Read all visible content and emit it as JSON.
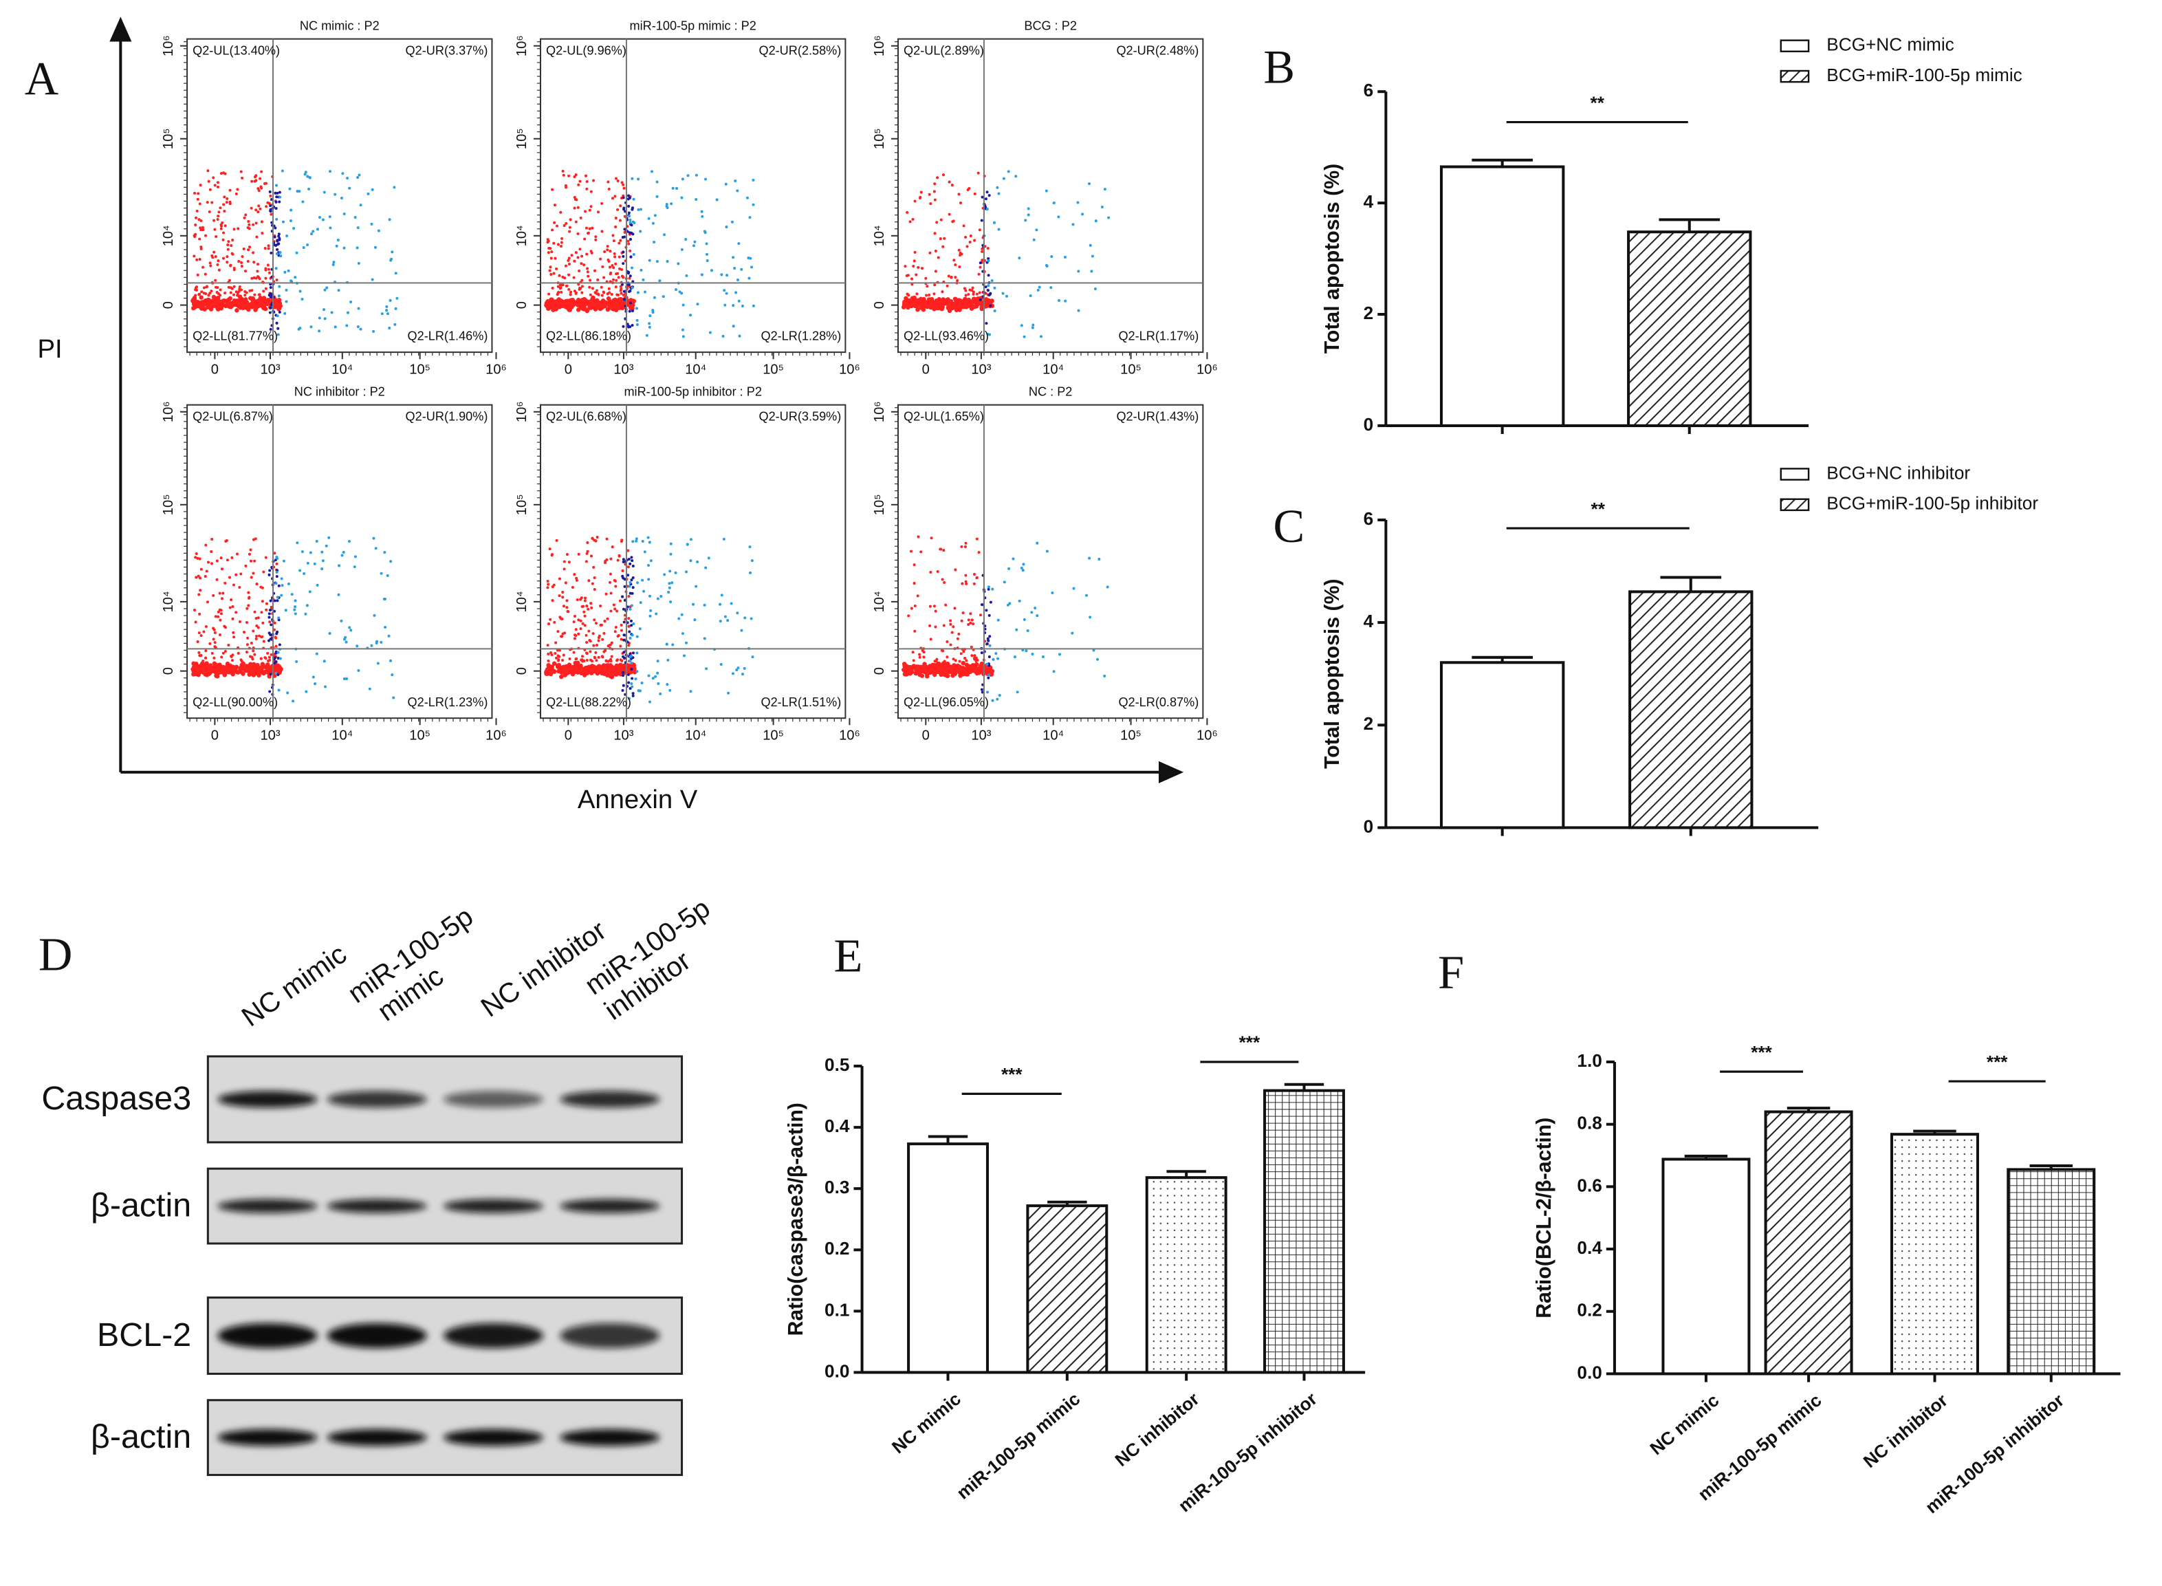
{
  "panel_labels": [
    "A",
    "B",
    "C",
    "D",
    "E",
    "F"
  ],
  "flow": {
    "y_label": "PI",
    "x_label": "Annexin V",
    "x_ticks": [
      "0",
      "10³",
      "10⁴",
      "10⁵",
      "10⁶"
    ],
    "y_ticks": [
      "0",
      "10⁴",
      "10⁵",
      "10⁶"
    ],
    "plots": [
      {
        "title": "NC mimic : P2",
        "UL": "Q2-UL(13.40%)",
        "UR": "Q2-UR(3.37%)",
        "LL": "Q2-LL(81.77%)",
        "LR": "Q2-LR(1.46%)"
      },
      {
        "title": "miR-100-5p mimic : P2",
        "UL": "Q2-UL(9.96%)",
        "UR": "Q2-UR(2.58%)",
        "LL": "Q2-LL(86.18%)",
        "LR": "Q2-LR(1.28%)"
      },
      {
        "title": "BCG : P2",
        "UL": "Q2-UL(2.89%)",
        "UR": "Q2-UR(2.48%)",
        "LL": "Q2-LL(93.46%)",
        "LR": "Q2-LR(1.17%)"
      },
      {
        "title": "NC inhibitor : P2",
        "UL": "Q2-UL(6.87%)",
        "UR": "Q2-UR(1.90%)",
        "LL": "Q2-LL(90.00%)",
        "LR": "Q2-LR(1.23%)"
      },
      {
        "title": "miR-100-5p inhibitor : P2",
        "UL": "Q2-UL(6.68%)",
        "UR": "Q2-UR(3.59%)",
        "LL": "Q2-LL(88.22%)",
        "LR": "Q2-LR(1.51%)"
      },
      {
        "title": "NC : P2",
        "UL": "Q2-UL(1.65%)",
        "UR": "Q2-UR(1.43%)",
        "LL": "Q2-LL(96.05%)",
        "LR": "Q2-LR(0.87%)"
      }
    ]
  },
  "blot": {
    "lanes": [
      [
        "NC mimic"
      ],
      [
        "miR-100-5p",
        "mimic"
      ],
      [
        "NC inhibitor"
      ],
      [
        "miR-100-5p",
        "inhibitor"
      ]
    ],
    "rows": [
      "Caspase3",
      "β-actin",
      "BCL-2",
      "β-actin"
    ]
  },
  "chart_data": [
    {
      "type": "bar",
      "y_label": "Total apoptosis (%)",
      "ylim": [
        0,
        6
      ],
      "yticks": [
        0,
        2,
        4,
        6
      ],
      "series": [
        {
          "name": "BCG+NC mimic",
          "pattern": "none",
          "values": [
            4.65
          ],
          "errors": [
            0.12
          ]
        },
        {
          "name": "BCG+miR-100-5p mimic",
          "pattern": "hatch",
          "values": [
            3.48
          ],
          "errors": [
            0.22
          ]
        }
      ],
      "significance": [
        {
          "label": "**",
          "from": 0,
          "to": 1
        }
      ]
    },
    {
      "type": "bar",
      "y_label": "Total apoptosis (%)",
      "ylim": [
        0,
        6
      ],
      "yticks": [
        0,
        2,
        4,
        6
      ],
      "series": [
        {
          "name": "BCG+NC inhibitor",
          "pattern": "none",
          "values": [
            3.22
          ],
          "errors": [
            0.1
          ]
        },
        {
          "name": "BCG+miR-100-5p inhibitor",
          "pattern": "hatch",
          "values": [
            4.6
          ],
          "errors": [
            0.28
          ]
        }
      ],
      "significance": [
        {
          "label": "**",
          "from": 0,
          "to": 1
        }
      ]
    },
    {
      "type": "bar",
      "y_label": "Ratio(caspase3/β-actin)",
      "ylim": [
        0,
        0.5
      ],
      "yticks": [
        {
          "value": 0,
          "label": "0.0"
        },
        0.1,
        0.2,
        0.3,
        0.4,
        0.5
      ],
      "categories": [
        "NC mimic",
        "miR-100-5p mimic",
        "NC inhibitor",
        "miR-100-5p inhibitor"
      ],
      "patterns": [
        "none",
        "hatch",
        "dots",
        "grid"
      ],
      "values": [
        0.373,
        0.272,
        0.318,
        0.46
      ],
      "errors": [
        0.012,
        0.006,
        0.01,
        0.01
      ],
      "significance": [
        {
          "label": "***",
          "from": 0,
          "to": 1
        },
        {
          "label": "***",
          "from": 2,
          "to": 3
        }
      ]
    },
    {
      "type": "bar",
      "y_label": "Ratio(BCL-2/β-actin)",
      "ylim": [
        0,
        1
      ],
      "yticks": [
        {
          "value": 0,
          "label": "0.0"
        },
        0.2,
        0.4,
        0.6,
        0.8,
        {
          "value": 1,
          "label": "1.0"
        }
      ],
      "categories": [
        "NC mimic",
        "miR-100-5p mimic",
        "NC inhibitor",
        "miR-100-5p inhibitor"
      ],
      "patterns": [
        "none",
        "hatch",
        "dots",
        "grid"
      ],
      "values": [
        0.688,
        0.84,
        0.768,
        0.655
      ],
      "errors": [
        0.01,
        0.012,
        0.01,
        0.012
      ],
      "significance": [
        {
          "label": "***",
          "from": 0,
          "to": 1
        },
        {
          "label": "***",
          "from": 2,
          "to": 3
        }
      ]
    }
  ]
}
